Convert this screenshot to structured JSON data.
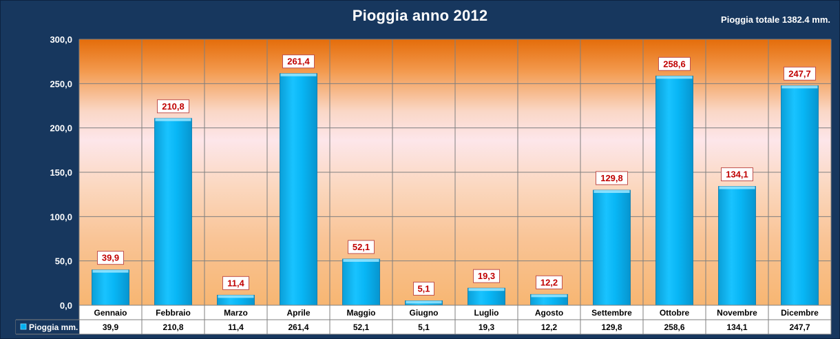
{
  "header": {
    "title": "Pioggia anno 2012",
    "total_note": "Pioggia totale 1382.4 mm."
  },
  "chart_data": {
    "type": "bar",
    "title": "Pioggia anno 2012",
    "xlabel": "",
    "ylabel": "",
    "ylim": [
      0,
      300
    ],
    "yticks": [
      0,
      50,
      100,
      150,
      200,
      250,
      300
    ],
    "ytick_labels": [
      "0,0",
      "50,0",
      "100,0",
      "150,0",
      "200,0",
      "250,0",
      "300,0"
    ],
    "categories": [
      "Gennaio",
      "Febbraio",
      "Marzo",
      "Aprile",
      "Maggio",
      "Giugno",
      "Luglio",
      "Agosto",
      "Settembre",
      "Ottobre",
      "Novembre",
      "Dicembre"
    ],
    "series": [
      {
        "name": "Pioggia mm.",
        "values": [
          39.9,
          210.8,
          11.4,
          261.4,
          52.1,
          5.1,
          19.3,
          12.2,
          129.8,
          258.6,
          134.1,
          247.7
        ],
        "labels": [
          "39,9",
          "210,8",
          "11,4",
          "261,4",
          "52,1",
          "5,1",
          "19,3",
          "12,2",
          "129,8",
          "258,6",
          "134,1",
          "247,7"
        ]
      }
    ],
    "data_table": true,
    "grid": true,
    "colors": {
      "bar": "#00b0f0",
      "label_text": "#c00000",
      "frame": "#17375e"
    }
  }
}
